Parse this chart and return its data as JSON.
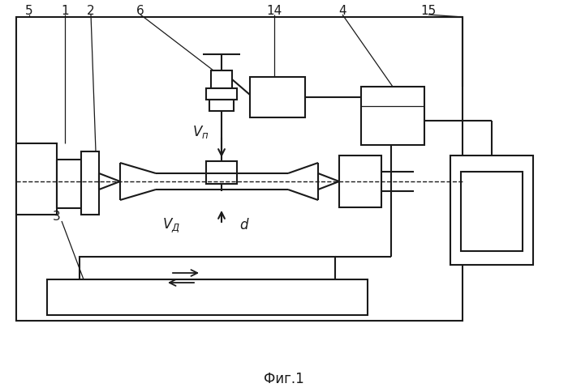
{
  "bg": "#ffffff",
  "lc": "#1a1a1a",
  "lw": 1.5,
  "lw_thin": 0.9,
  "caption": "Фиг.1"
}
